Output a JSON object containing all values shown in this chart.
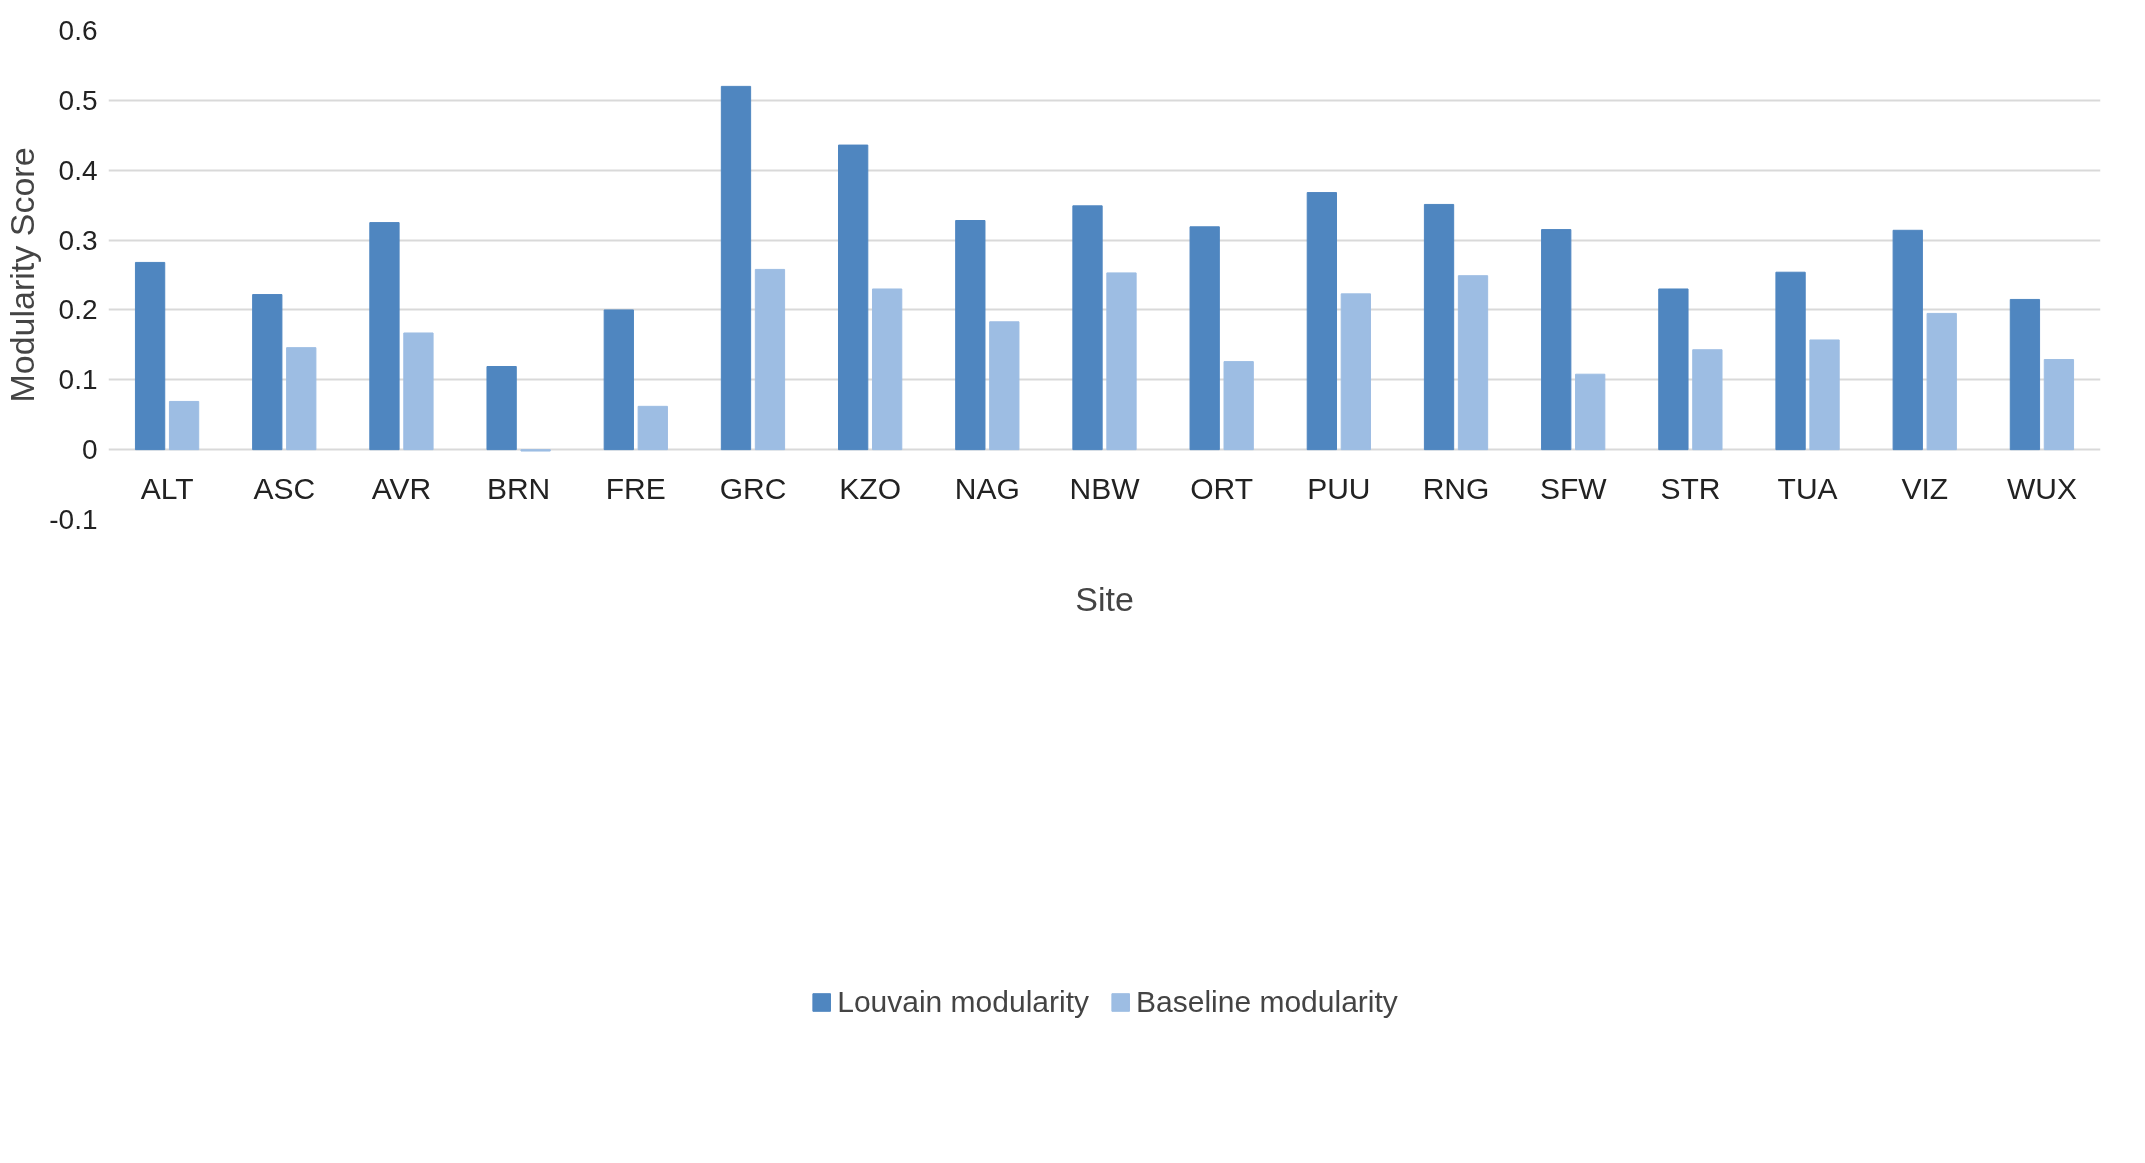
{
  "chart_data": {
    "type": "bar",
    "xlabel": "Site",
    "ylabel": "Modularity Score",
    "categories": [
      "ALT",
      "ASC",
      "AVR",
      "BRN",
      "FRE",
      "GRC",
      "KZO",
      "NAG",
      "NBW",
      "ORT",
      "PUU",
      "RNG",
      "SFW",
      "STR",
      "TUA",
      "VIZ",
      "WUX"
    ],
    "series": [
      {
        "name": "Louvain modularity",
        "color": "#4f86c0",
        "values": [
          0.268,
          0.222,
          0.325,
          0.119,
          0.2,
          0.52,
          0.436,
          0.328,
          0.349,
          0.319,
          0.368,
          0.351,
          0.315,
          0.23,
          0.254,
          0.314,
          0.215
        ]
      },
      {
        "name": "Baseline modularity",
        "color": "#9dbde3",
        "values": [
          0.069,
          0.146,
          0.167,
          -0.002,
          0.062,
          0.258,
          0.23,
          0.183,
          0.253,
          0.126,
          0.223,
          0.249,
          0.108,
          0.143,
          0.157,
          0.195,
          0.129
        ]
      }
    ],
    "ylim": [
      -0.1,
      0.6
    ],
    "yticks": [
      -0.1,
      0,
      0.1,
      0.2,
      0.3,
      0.4,
      0.5,
      0.6
    ],
    "grid": "y",
    "legend": "bottom"
  }
}
